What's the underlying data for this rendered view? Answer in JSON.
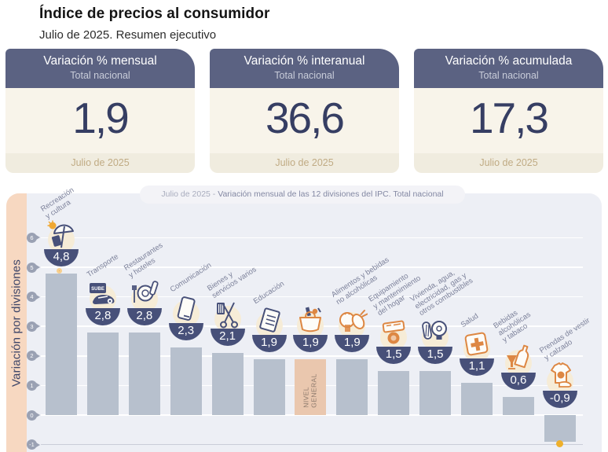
{
  "page": {
    "title": "Índice de precios al consumidor",
    "subtitle": "Julio de 2025. Resumen ejecutivo"
  },
  "cards": [
    {
      "title": "Variación % mensual",
      "subtitle": "Total nacional",
      "value": "1,9",
      "period": "Julio de 2025"
    },
    {
      "title": "Variación % interanual",
      "subtitle": "Total nacional",
      "value": "36,6",
      "period": "Julio de 2025"
    },
    {
      "title": "Variación % acumulada",
      "subtitle": "Total nacional",
      "value": "17,3",
      "period": "Julio de 2025"
    }
  ],
  "colors": {
    "navy": "#475079",
    "card_header": "#5b6282",
    "value_text": "#363e63",
    "bar": "#b7c0cd",
    "highlight_bar": "#eac7ae",
    "chart_bg": "#edeff5",
    "strip": "#f7d8c1",
    "orange": "#dd8743",
    "dot_max": "#efa22f",
    "dot_min": "#eeb02c"
  },
  "chart_data": {
    "type": "bar",
    "title": "Julio de 2025 - Variación mensual de las 12 divisiones del IPC. Total nacional",
    "title_prefix": "Julio de 2025 - ",
    "title_main": "Variación mensual de las 12 divisiones del IPC. Total nacional",
    "ylabel": "Variación por divisiones",
    "yticks": [
      6,
      5,
      4,
      3,
      2,
      1,
      0,
      -1
    ],
    "ylim": [
      -1.5,
      6.8
    ],
    "grid": true,
    "legend": "none",
    "categories": [
      "Recreación y cultura",
      "Transporte",
      "Restaurantes y hoteles",
      "Comunicación",
      "Bienes y servicios varios",
      "Educación",
      "Nivel general",
      "Alimentos y bebidas no alcohólicas",
      "Equipamiento y mantenimiento del hogar",
      "Vivienda, agua, electricidad, gas y otros combustibles",
      "Salud",
      "Bebidas alcohólicas y tabaco",
      "Prendas de vestir y calzado"
    ],
    "values": [
      4.8,
      2.8,
      2.8,
      2.3,
      2.1,
      1.9,
      1.9,
      1.9,
      1.5,
      1.5,
      1.1,
      0.6,
      -0.9
    ],
    "bars": [
      {
        "category": "Recreación y cultura",
        "label_lines": [
          "Recreación",
          "y cultura"
        ],
        "value": 4.8,
        "value_label": "4,8",
        "icon": "beach-umbrella-sun-icon",
        "highlight": false
      },
      {
        "category": "Transporte",
        "label_lines": [
          "Transporte"
        ],
        "value": 2.8,
        "value_label": "2,8",
        "icon": "sube-card-car-icon",
        "highlight": false
      },
      {
        "category": "Restaurantes y hoteles",
        "label_lines": [
          "Restaurantes",
          "y hoteles"
        ],
        "value": 2.8,
        "value_label": "2,8",
        "icon": "fork-plate-icon",
        "highlight": false
      },
      {
        "category": "Comunicación",
        "label_lines": [
          "Comunicación"
        ],
        "value": 2.3,
        "value_label": "2,3",
        "icon": "smartphone-icon",
        "highlight": false
      },
      {
        "category": "Bienes y servicios varios",
        "label_lines": [
          "Bienes y",
          "servicios varios"
        ],
        "value": 2.1,
        "value_label": "2,1",
        "icon": "scissors-comb-icon",
        "highlight": false
      },
      {
        "category": "Educación",
        "label_lines": [
          "Educación"
        ],
        "value": 1.9,
        "value_label": "1,9",
        "icon": "notebook-icon",
        "highlight": false
      },
      {
        "category": "Nivel general",
        "label_lines": [],
        "in_bar_label": [
          "NIVEL",
          "GENERAL"
        ],
        "value": 1.9,
        "value_label": "1,9",
        "icon": "shopping-basket-icon",
        "highlight": true
      },
      {
        "category": "Alimentos y bebidas no alcohólicas",
        "label_lines": [
          "Alimentos y bebidas",
          "no alcohólicas"
        ],
        "value": 1.9,
        "value_label": "1,9",
        "icon": "poultry-icon",
        "highlight": false
      },
      {
        "category": "Equipamiento y mantenimiento del hogar",
        "label_lines": [
          "Equipamiento",
          "y mantenimiento",
          "del hogar"
        ],
        "value": 1.5,
        "value_label": "1,5",
        "icon": "washing-machine-icon",
        "highlight": false
      },
      {
        "category": "Vivienda, agua, electricidad, gas y otros combustibles",
        "label_lines": [
          "Vivienda, agua,",
          "electricidad, gas y",
          "otros combustibles"
        ],
        "value": 1.5,
        "value_label": "1,5",
        "icon": "bulb-plug-icon",
        "highlight": false
      },
      {
        "category": "Salud",
        "label_lines": [
          "Salud"
        ],
        "value": 1.1,
        "value_label": "1,1",
        "icon": "health-cross-icon",
        "highlight": false
      },
      {
        "category": "Bebidas alcohólicas y tabaco",
        "label_lines": [
          "Bebidas",
          "alcohólicas",
          "y tabaco"
        ],
        "value": 0.6,
        "value_label": "0,6",
        "icon": "bottle-glass-icon",
        "highlight": false
      },
      {
        "category": "Prendas de vestir y calzado",
        "label_lines": [
          "Prendas de vestir",
          "y calzado"
        ],
        "value": -0.9,
        "value_label": "-0,9",
        "icon": "tshirt-shoe-icon",
        "highlight": false
      }
    ],
    "point_markers": [
      {
        "bar_index": 0,
        "position": "top",
        "color": "#efa22f"
      },
      {
        "bar_index": 12,
        "position": "bottom",
        "color": "#eeb02c"
      }
    ]
  }
}
